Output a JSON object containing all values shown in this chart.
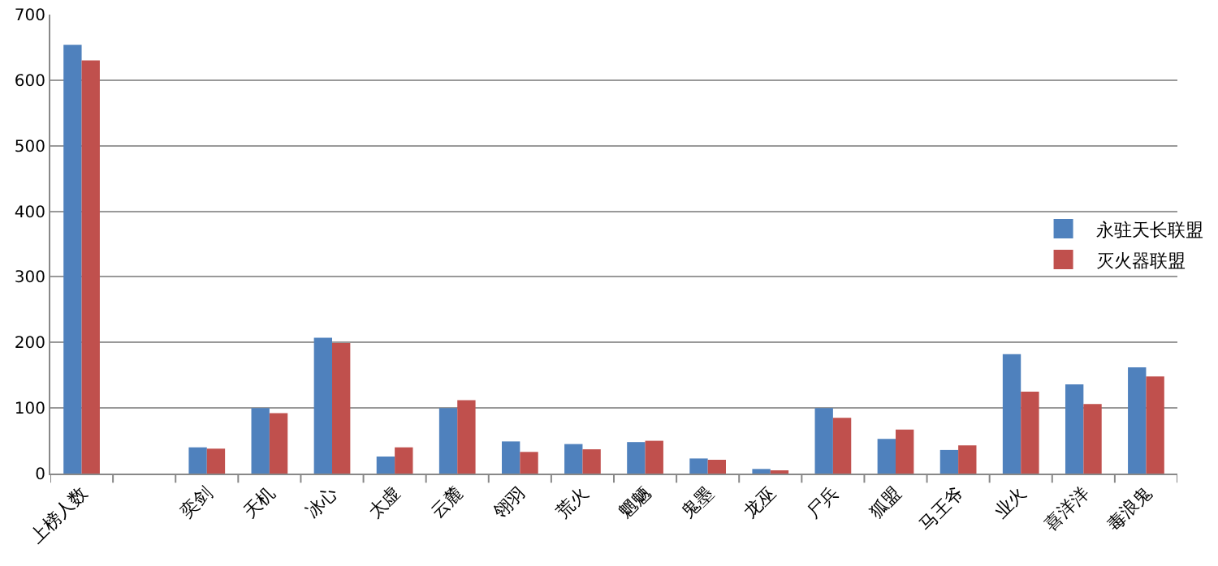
{
  "chart_data": {
    "type": "bar",
    "categories": [
      "上榜人数",
      null,
      "奕剑",
      "天机",
      "冰心",
      "太虚",
      "云麓",
      "翎羽",
      "荒火",
      "魍魉",
      "鬼墨",
      "龙巫",
      "尸兵",
      "狐盟",
      "马王爷",
      "业火",
      "喜洋洋",
      "毒浪鬼"
    ],
    "series": [
      {
        "name": "永驻天长联盟",
        "color": "#4f81bd",
        "values": [
          654,
          null,
          40,
          100,
          207,
          26,
          100,
          49,
          45,
          48,
          23,
          7,
          100,
          53,
          36,
          182,
          136,
          162
        ]
      },
      {
        "name": "灭火器联盟",
        "color": "#c0504d",
        "values": [
          630,
          null,
          38,
          92,
          199,
          40,
          112,
          33,
          37,
          50,
          21,
          3,
          85,
          67,
          43,
          125,
          106,
          148
        ]
      }
    ],
    "ylim": [
      0,
      700
    ],
    "yticks": [
      0,
      100,
      200,
      300,
      400,
      500,
      600,
      700
    ],
    "grid": "y",
    "legend": "right"
  }
}
